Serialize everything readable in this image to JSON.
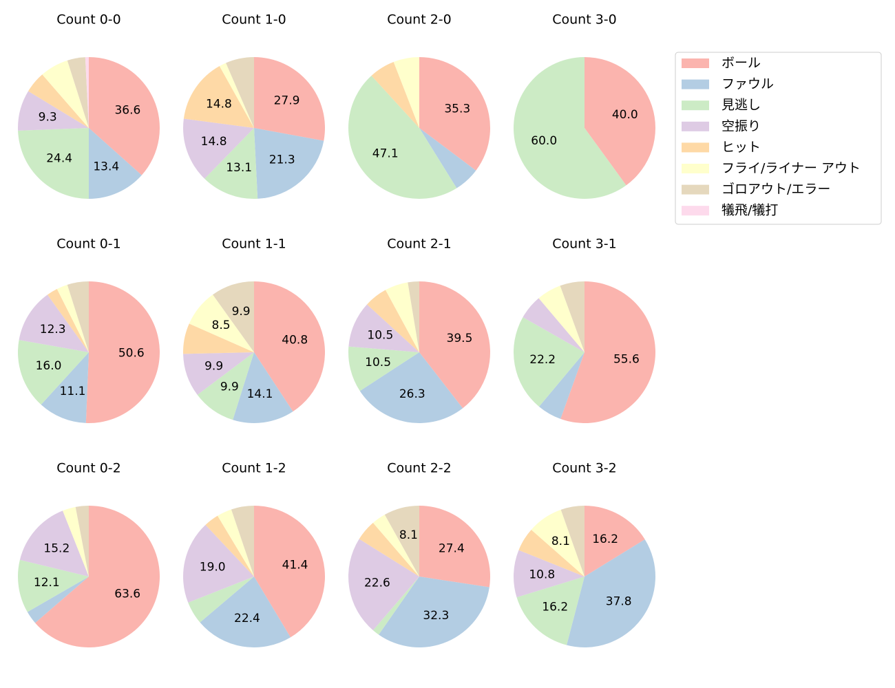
{
  "chart_data": [
    {
      "type": "pie",
      "title": "Count 0-0",
      "categories": [
        "ボール",
        "ファウル",
        "見逃し",
        "空振り",
        "ヒット",
        "フライ/ライナー アウト",
        "ゴロアウト/エラー",
        "犠飛/犠打"
      ],
      "colors": [
        "#fbb4ae",
        "#b3cde3",
        "#ccebc5",
        "#decbe4",
        "#fed9a6",
        "#ffffcc",
        "#e5d8bd",
        "#fddaec"
      ],
      "values": [
        36.6,
        13.4,
        24.4,
        9.3,
        4.9,
        6.5,
        4.1,
        0.8
      ],
      "value_labels": [
        "36.6",
        "13.4",
        "24.4",
        "9.3",
        null,
        null,
        null,
        null
      ]
    },
    {
      "type": "pie",
      "title": "Count 1-0",
      "categories": [
        "ボール",
        "ファウル",
        "見逃し",
        "空振り",
        "ヒット",
        "フライ/ライナー アウト",
        "ゴロアウト/エラー",
        "犠飛/犠打"
      ],
      "colors": [
        "#fbb4ae",
        "#b3cde3",
        "#ccebc5",
        "#decbe4",
        "#fed9a6",
        "#ffffcc",
        "#e5d8bd",
        "#fddaec"
      ],
      "values": [
        27.9,
        21.3,
        13.1,
        14.8,
        14.8,
        1.6,
        6.5,
        0
      ],
      "value_labels": [
        "27.9",
        "21.3",
        "13.1",
        "14.8",
        "14.8",
        null,
        null,
        null
      ]
    },
    {
      "type": "pie",
      "title": "Count 2-0",
      "categories": [
        "ボール",
        "ファウル",
        "見逃し",
        "空振り",
        "ヒット",
        "フライ/ライナー アウト",
        "ゴロアウト/エラー",
        "犠飛/犠打"
      ],
      "colors": [
        "#fbb4ae",
        "#b3cde3",
        "#ccebc5",
        "#decbe4",
        "#fed9a6",
        "#ffffcc",
        "#e5d8bd",
        "#fddaec"
      ],
      "values": [
        35.3,
        5.9,
        47.1,
        0,
        5.9,
        5.9,
        0,
        0
      ],
      "value_labels": [
        "35.3",
        null,
        "47.1",
        null,
        null,
        null,
        null,
        null
      ]
    },
    {
      "type": "pie",
      "title": "Count 3-0",
      "categories": [
        "ボール",
        "ファウル",
        "見逃し",
        "空振り",
        "ヒット",
        "フライ/ライナー アウト",
        "ゴロアウト/エラー",
        "犠飛/犠打"
      ],
      "colors": [
        "#fbb4ae",
        "#b3cde3",
        "#ccebc5",
        "#decbe4",
        "#fed9a6",
        "#ffffcc",
        "#e5d8bd",
        "#fddaec"
      ],
      "values": [
        40.0,
        0,
        60.0,
        0,
        0,
        0,
        0,
        0
      ],
      "value_labels": [
        "40.0",
        null,
        "60.0",
        null,
        null,
        null,
        null,
        null
      ]
    },
    {
      "type": "pie",
      "title": "Count 0-1",
      "categories": [
        "ボール",
        "ファウル",
        "見逃し",
        "空振り",
        "ヒット",
        "フライ/ライナー アウト",
        "ゴロアウト/エラー",
        "犠飛/犠打"
      ],
      "colors": [
        "#fbb4ae",
        "#b3cde3",
        "#ccebc5",
        "#decbe4",
        "#fed9a6",
        "#ffffcc",
        "#e5d8bd",
        "#fddaec"
      ],
      "values": [
        50.6,
        11.1,
        16.0,
        12.3,
        2.5,
        2.5,
        4.9,
        0
      ],
      "value_labels": [
        "50.6",
        "11.1",
        "16.0",
        "12.3",
        null,
        null,
        null,
        null
      ]
    },
    {
      "type": "pie",
      "title": "Count 1-1",
      "categories": [
        "ボール",
        "ファウル",
        "見逃し",
        "空振り",
        "ヒット",
        "フライ/ライナー アウト",
        "ゴロアウト/エラー",
        "犠飛/犠打"
      ],
      "colors": [
        "#fbb4ae",
        "#b3cde3",
        "#ccebc5",
        "#decbe4",
        "#fed9a6",
        "#ffffcc",
        "#e5d8bd",
        "#fddaec"
      ],
      "values": [
        40.8,
        14.1,
        9.9,
        9.9,
        7.0,
        8.5,
        9.9,
        0
      ],
      "value_labels": [
        "40.8",
        "14.1",
        "9.9",
        "9.9",
        null,
        "8.5",
        "9.9",
        null
      ]
    },
    {
      "type": "pie",
      "title": "Count 2-1",
      "categories": [
        "ボール",
        "ファウル",
        "見逃し",
        "空振り",
        "ヒット",
        "フライ/ライナー アウト",
        "ゴロアウト/エラー",
        "犠飛/犠打"
      ],
      "colors": [
        "#fbb4ae",
        "#b3cde3",
        "#ccebc5",
        "#decbe4",
        "#fed9a6",
        "#ffffcc",
        "#e5d8bd",
        "#fddaec"
      ],
      "values": [
        39.5,
        26.3,
        10.5,
        10.5,
        5.3,
        5.3,
        2.6,
        0
      ],
      "value_labels": [
        "39.5",
        "26.3",
        "10.5",
        "10.5",
        null,
        null,
        null,
        null
      ]
    },
    {
      "type": "pie",
      "title": "Count 3-1",
      "categories": [
        "ボール",
        "ファウル",
        "見逃し",
        "空振り",
        "ヒット",
        "フライ/ライナー アウト",
        "ゴロアウト/エラー",
        "犠飛/犠打"
      ],
      "colors": [
        "#fbb4ae",
        "#b3cde3",
        "#ccebc5",
        "#decbe4",
        "#fed9a6",
        "#ffffcc",
        "#e5d8bd",
        "#fddaec"
      ],
      "values": [
        55.6,
        5.6,
        22.2,
        5.6,
        0,
        5.6,
        5.6,
        0
      ],
      "value_labels": [
        "55.6",
        null,
        "22.2",
        null,
        null,
        null,
        null,
        null
      ]
    },
    {
      "type": "pie",
      "title": "Count 0-2",
      "categories": [
        "ボール",
        "ファウル",
        "見逃し",
        "空振り",
        "ヒット",
        "フライ/ライナー アウト",
        "ゴロアウト/エラー",
        "犠飛/犠打"
      ],
      "colors": [
        "#fbb4ae",
        "#b3cde3",
        "#ccebc5",
        "#decbe4",
        "#fed9a6",
        "#ffffcc",
        "#e5d8bd",
        "#fddaec"
      ],
      "values": [
        63.6,
        3.0,
        12.1,
        15.2,
        0,
        3.0,
        3.0,
        0
      ],
      "value_labels": [
        "63.6",
        null,
        "12.1",
        "15.2",
        null,
        null,
        null,
        null
      ]
    },
    {
      "type": "pie",
      "title": "Count 1-2",
      "categories": [
        "ボール",
        "ファウル",
        "見逃し",
        "空振り",
        "ヒット",
        "フライ/ライナー アウト",
        "ゴロアウト/エラー",
        "犠飛/犠打"
      ],
      "colors": [
        "#fbb4ae",
        "#b3cde3",
        "#ccebc5",
        "#decbe4",
        "#fed9a6",
        "#ffffcc",
        "#e5d8bd",
        "#fddaec"
      ],
      "values": [
        41.4,
        22.4,
        5.2,
        19.0,
        3.4,
        3.4,
        5.2,
        0
      ],
      "value_labels": [
        "41.4",
        "22.4",
        null,
        "19.0",
        null,
        null,
        null,
        null
      ]
    },
    {
      "type": "pie",
      "title": "Count 2-2",
      "categories": [
        "ボール",
        "ファウル",
        "見逃し",
        "空振り",
        "ヒット",
        "フライ/ライナー アウト",
        "ゴロアウト/エラー",
        "犠飛/犠打"
      ],
      "colors": [
        "#fbb4ae",
        "#b3cde3",
        "#ccebc5",
        "#decbe4",
        "#fed9a6",
        "#ffffcc",
        "#e5d8bd",
        "#fddaec"
      ],
      "values": [
        27.4,
        32.3,
        1.6,
        22.6,
        4.8,
        3.2,
        8.1,
        0
      ],
      "value_labels": [
        "27.4",
        "32.3",
        null,
        "22.6",
        null,
        null,
        "8.1",
        null
      ]
    },
    {
      "type": "pie",
      "title": "Count 3-2",
      "categories": [
        "ボール",
        "ファウル",
        "見逃し",
        "空振り",
        "ヒット",
        "フライ/ライナー アウト",
        "ゴロアウト/エラー",
        "犠飛/犠打"
      ],
      "colors": [
        "#fbb4ae",
        "#b3cde3",
        "#ccebc5",
        "#decbe4",
        "#fed9a6",
        "#ffffcc",
        "#e5d8bd",
        "#fddaec"
      ],
      "values": [
        16.2,
        37.8,
        16.2,
        10.8,
        5.4,
        8.1,
        5.4,
        0
      ],
      "value_labels": [
        "16.2",
        "37.8",
        "16.2",
        "10.8",
        null,
        "8.1",
        null,
        null
      ]
    }
  ]
}
